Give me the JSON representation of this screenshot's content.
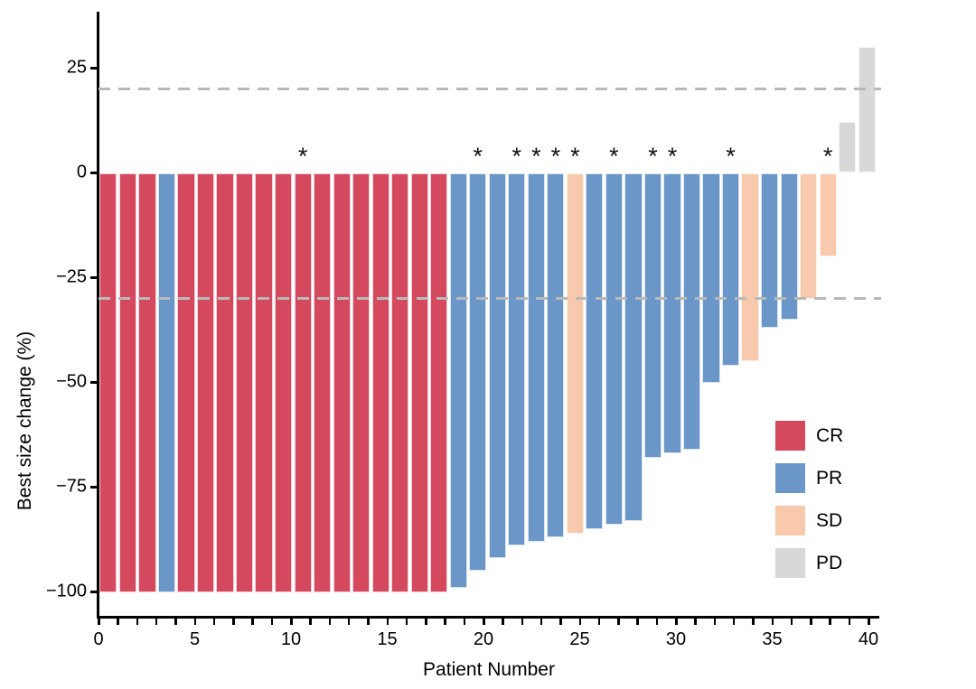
{
  "chart_data": {
    "type": "bar",
    "subtype": "waterfall",
    "title": "",
    "xlabel": "Patient Number",
    "ylabel": "Best size change (%)",
    "ylim": [
      -106,
      38
    ],
    "xlim": [
      0,
      40.6
    ],
    "grid": false,
    "legend_position": "inside-right",
    "y_ticks": [
      {
        "value": 25,
        "label": "25"
      },
      {
        "value": 0,
        "label": "0"
      },
      {
        "value": -25,
        "label": "−25"
      },
      {
        "value": -50,
        "label": "−50"
      },
      {
        "value": -75,
        "label": "−75"
      },
      {
        "value": -100,
        "label": "−100"
      }
    ],
    "x_major_ticks": [
      {
        "value": 0,
        "label": "0"
      },
      {
        "value": 5,
        "label": "5"
      },
      {
        "value": 10,
        "label": "10"
      },
      {
        "value": 15,
        "label": "15"
      },
      {
        "value": 20,
        "label": "20"
      },
      {
        "value": 25,
        "label": "25"
      },
      {
        "value": 30,
        "label": "30"
      },
      {
        "value": 35,
        "label": "35"
      },
      {
        "value": 40,
        "label": "40"
      }
    ],
    "x_minor_tick_every": 1,
    "reference_lines": [
      {
        "value": 20,
        "style": "dashed",
        "color": "#b9b9b9"
      },
      {
        "value": -30,
        "style": "dashed",
        "color": "#b9b9b9"
      }
    ],
    "annotation_symbol": "*",
    "legend": [
      {
        "key": "CR",
        "label": "CR",
        "color": "#d5495f"
      },
      {
        "key": "PR",
        "label": "PR",
        "color": "#6b97c8"
      },
      {
        "key": "SD",
        "label": "SD",
        "color": "#f8c9ac"
      },
      {
        "key": "PD",
        "label": "PD",
        "color": "#d8d8d8"
      }
    ],
    "patients": [
      {
        "patient": 1,
        "value": -100,
        "response": "CR",
        "star": false
      },
      {
        "patient": 2,
        "value": -100,
        "response": "CR",
        "star": false
      },
      {
        "patient": 3,
        "value": -100,
        "response": "CR",
        "star": false
      },
      {
        "patient": 4,
        "value": -100,
        "response": "PR",
        "star": false
      },
      {
        "patient": 5,
        "value": -100,
        "response": "CR",
        "star": false
      },
      {
        "patient": 6,
        "value": -100,
        "response": "CR",
        "star": false
      },
      {
        "patient": 7,
        "value": -100,
        "response": "CR",
        "star": false
      },
      {
        "patient": 8,
        "value": -100,
        "response": "CR",
        "star": false
      },
      {
        "patient": 9,
        "value": -100,
        "response": "CR",
        "star": false
      },
      {
        "patient": 10,
        "value": -100,
        "response": "CR",
        "star": false
      },
      {
        "patient": 11,
        "value": -100,
        "response": "CR",
        "star": true
      },
      {
        "patient": 12,
        "value": -100,
        "response": "CR",
        "star": false
      },
      {
        "patient": 13,
        "value": -100,
        "response": "CR",
        "star": false
      },
      {
        "patient": 14,
        "value": -100,
        "response": "CR",
        "star": false
      },
      {
        "patient": 15,
        "value": -100,
        "response": "CR",
        "star": false
      },
      {
        "patient": 16,
        "value": -100,
        "response": "CR",
        "star": false
      },
      {
        "patient": 17,
        "value": -100,
        "response": "CR",
        "star": false
      },
      {
        "patient": 18,
        "value": -100,
        "response": "CR",
        "star": false
      },
      {
        "patient": 19,
        "value": -99,
        "response": "PR",
        "star": false
      },
      {
        "patient": 20,
        "value": -95,
        "response": "PR",
        "star": true
      },
      {
        "patient": 21,
        "value": -92,
        "response": "PR",
        "star": false
      },
      {
        "patient": 22,
        "value": -89,
        "response": "PR",
        "star": true
      },
      {
        "patient": 23,
        "value": -88,
        "response": "PR",
        "star": true
      },
      {
        "patient": 24,
        "value": -87,
        "response": "PR",
        "star": true
      },
      {
        "patient": 25,
        "value": -86,
        "response": "SD",
        "star": true
      },
      {
        "patient": 26,
        "value": -85,
        "response": "PR",
        "star": false
      },
      {
        "patient": 27,
        "value": -84,
        "response": "PR",
        "star": true
      },
      {
        "patient": 28,
        "value": -83,
        "response": "PR",
        "star": false
      },
      {
        "patient": 29,
        "value": -68,
        "response": "PR",
        "star": true
      },
      {
        "patient": 30,
        "value": -67,
        "response": "PR",
        "star": true
      },
      {
        "patient": 31,
        "value": -66,
        "response": "PR",
        "star": false
      },
      {
        "patient": 32,
        "value": -50,
        "response": "PR",
        "star": false
      },
      {
        "patient": 33,
        "value": -46,
        "response": "PR",
        "star": true
      },
      {
        "patient": 34,
        "value": -45,
        "response": "SD",
        "star": false
      },
      {
        "patient": 35,
        "value": -37,
        "response": "PR",
        "star": false
      },
      {
        "patient": 36,
        "value": -35,
        "response": "PR",
        "star": false
      },
      {
        "patient": 37,
        "value": -30,
        "response": "SD",
        "star": false
      },
      {
        "patient": 38,
        "value": -20,
        "response": "SD",
        "star": true
      },
      {
        "patient": 39,
        "value": 12,
        "response": "PD",
        "star": false
      },
      {
        "patient": 40,
        "value": 30,
        "response": "PD",
        "star": false
      }
    ]
  }
}
